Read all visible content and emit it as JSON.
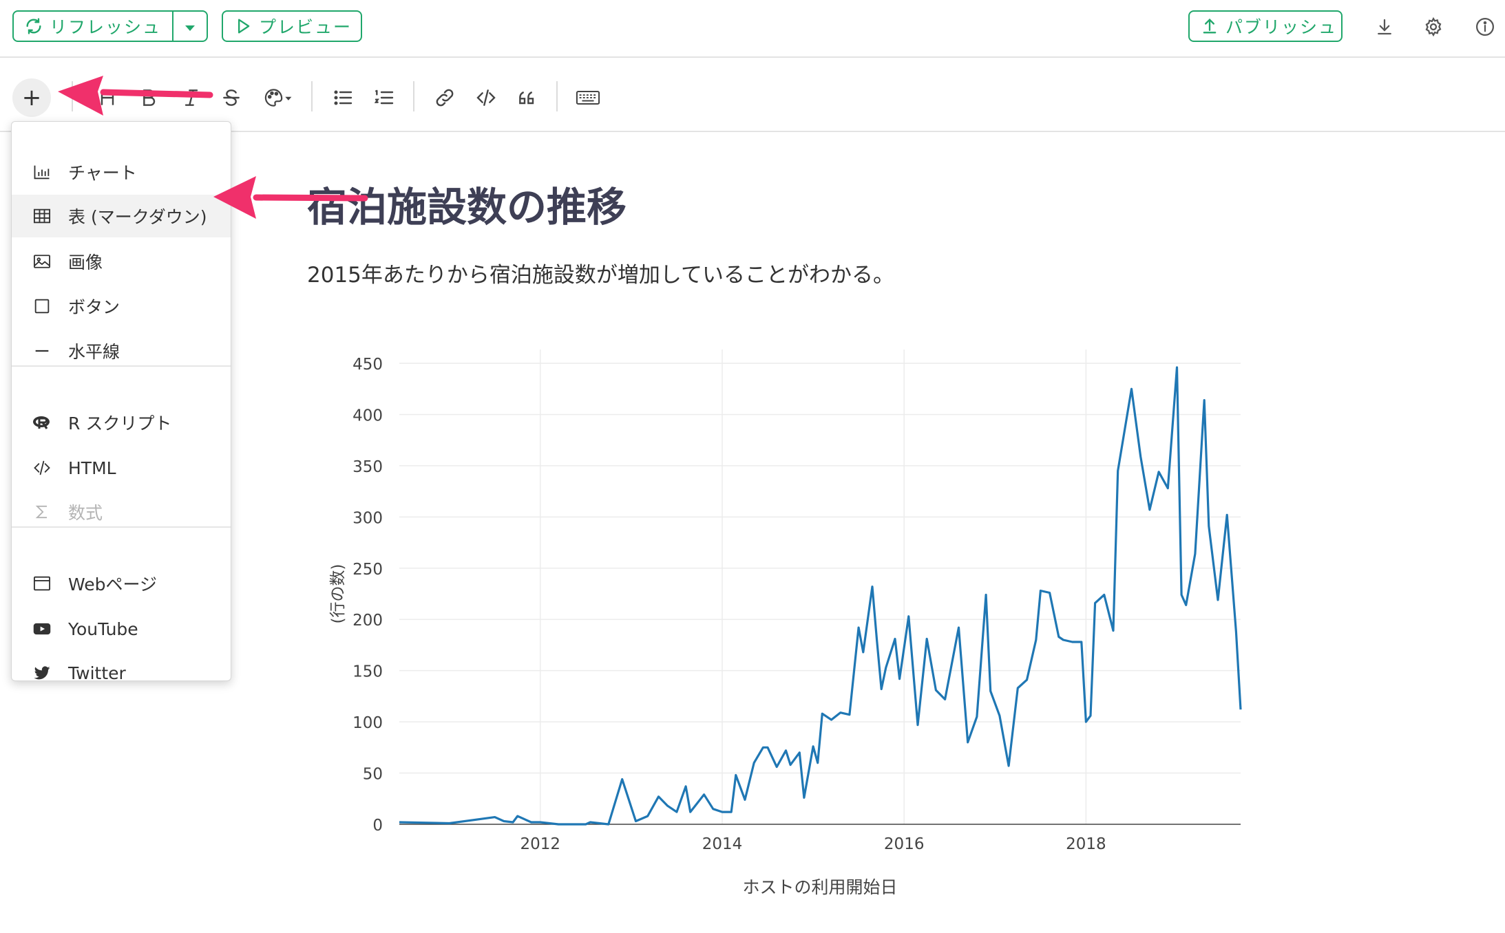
{
  "topbar": {
    "refresh_label": "リフレッシュ",
    "preview_label": "プレビュー",
    "publish_label": "パブリッシュ",
    "icons": [
      "refresh-icon",
      "caret-down-icon",
      "play-icon",
      "upload-icon",
      "download-icon",
      "gear-icon",
      "info-icon"
    ]
  },
  "format_toolbar": {
    "insert_label": "+",
    "items": [
      "heading-icon",
      "bold-icon",
      "italic-icon",
      "strikethrough-icon",
      "palette-icon",
      "bullet-list-icon",
      "numbered-list-icon",
      "link-icon",
      "code-icon",
      "quote-icon",
      "keyboard-icon"
    ]
  },
  "insert_menu": {
    "items": [
      {
        "label": "チャート",
        "icon": "chart-icon"
      },
      {
        "label": "表 (マークダウン)",
        "icon": "table-icon"
      },
      {
        "label": "画像",
        "icon": "image-icon"
      },
      {
        "label": "ボタン",
        "icon": "button-icon"
      },
      {
        "label": "水平線",
        "icon": "horizontal-rule-icon"
      },
      {
        "label": "R スクリプト",
        "icon": "r-script-icon"
      },
      {
        "label": "HTML",
        "icon": "html-icon"
      },
      {
        "label": "数式",
        "icon": "sigma-icon"
      },
      {
        "label": "Webページ",
        "icon": "web-page-icon"
      },
      {
        "label": "YouTube",
        "icon": "youtube-icon"
      },
      {
        "label": "Twitter",
        "icon": "twitter-icon"
      }
    ]
  },
  "document": {
    "title": "宿泊施設数の推移",
    "text": "2015年あたりから宿泊施設数が増加していることがわかる。"
  },
  "colors": {
    "accent": "#20a76b",
    "line": "#1f77b4",
    "arrow": "#f0306b",
    "title": "#3e3f55"
  },
  "chart_data": {
    "type": "line",
    "xlabel": "ホストの利用開始日",
    "ylabel": "(行の数)",
    "xlim": [
      2010.45,
      2019.7
    ],
    "ylim": [
      0,
      450
    ],
    "x_ticks": [
      2012,
      2014,
      2016,
      2018
    ],
    "y_ticks": [
      0,
      50,
      100,
      150,
      200,
      250,
      300,
      350,
      400,
      450
    ],
    "grid": true,
    "series": [
      {
        "x": [
          2010.45,
          2011.0,
          2011.5,
          2011.6,
          2011.7,
          2011.75,
          2011.9,
          2012.0,
          2012.1,
          2012.2,
          2012.5,
          2012.55,
          2012.75,
          2012.9,
          2013.05,
          2013.18,
          2013.3,
          2013.4,
          2013.5,
          2013.6,
          2013.65,
          2013.8,
          2013.9,
          2014.0,
          2014.1,
          2014.15,
          2014.25,
          2014.35,
          2014.45,
          2014.5,
          2014.6,
          2014.7,
          2014.75,
          2014.85,
          2014.9,
          2015.0,
          2015.05,
          2015.1,
          2015.2,
          2015.3,
          2015.4,
          2015.5,
          2015.55,
          2015.65,
          2015.7,
          2015.75,
          2015.8,
          2015.9,
          2015.95,
          2016.05,
          2016.15,
          2016.25,
          2016.35,
          2016.45,
          2016.6,
          2016.7,
          2016.8,
          2016.9,
          2016.95,
          2017.05,
          2017.15,
          2017.25,
          2017.35,
          2017.45,
          2017.5,
          2017.6,
          2017.7,
          2017.75,
          2017.85,
          2017.95,
          2018.0,
          2018.05,
          2018.1,
          2018.2,
          2018.3,
          2018.35,
          2018.5,
          2018.6,
          2018.7,
          2018.8,
          2018.9,
          2019.0,
          2019.05,
          2019.1,
          2019.2,
          2019.3,
          2019.35,
          2019.45,
          2019.55,
          2019.65,
          2019.7
        ],
        "y": [
          2,
          1,
          7,
          3,
          2,
          8,
          2,
          2,
          1,
          0,
          0,
          2,
          0,
          44,
          3,
          8,
          27,
          18,
          12,
          37,
          12,
          29,
          15,
          12,
          12,
          48,
          24,
          60,
          75,
          75,
          56,
          72,
          58,
          70,
          26,
          76,
          60,
          108,
          102,
          109,
          107,
          192,
          168,
          232,
          180,
          132,
          153,
          181,
          142,
          203,
          97,
          181,
          131,
          122,
          192,
          80,
          105,
          224,
          130,
          106,
          57,
          133,
          141,
          180,
          228,
          226,
          183,
          180,
          178,
          178,
          100,
          106,
          216,
          224,
          189,
          345,
          425,
          359,
          307,
          344,
          328,
          446,
          224,
          214,
          264,
          414,
          291,
          219,
          302,
          188,
          112
        ]
      }
    ]
  }
}
